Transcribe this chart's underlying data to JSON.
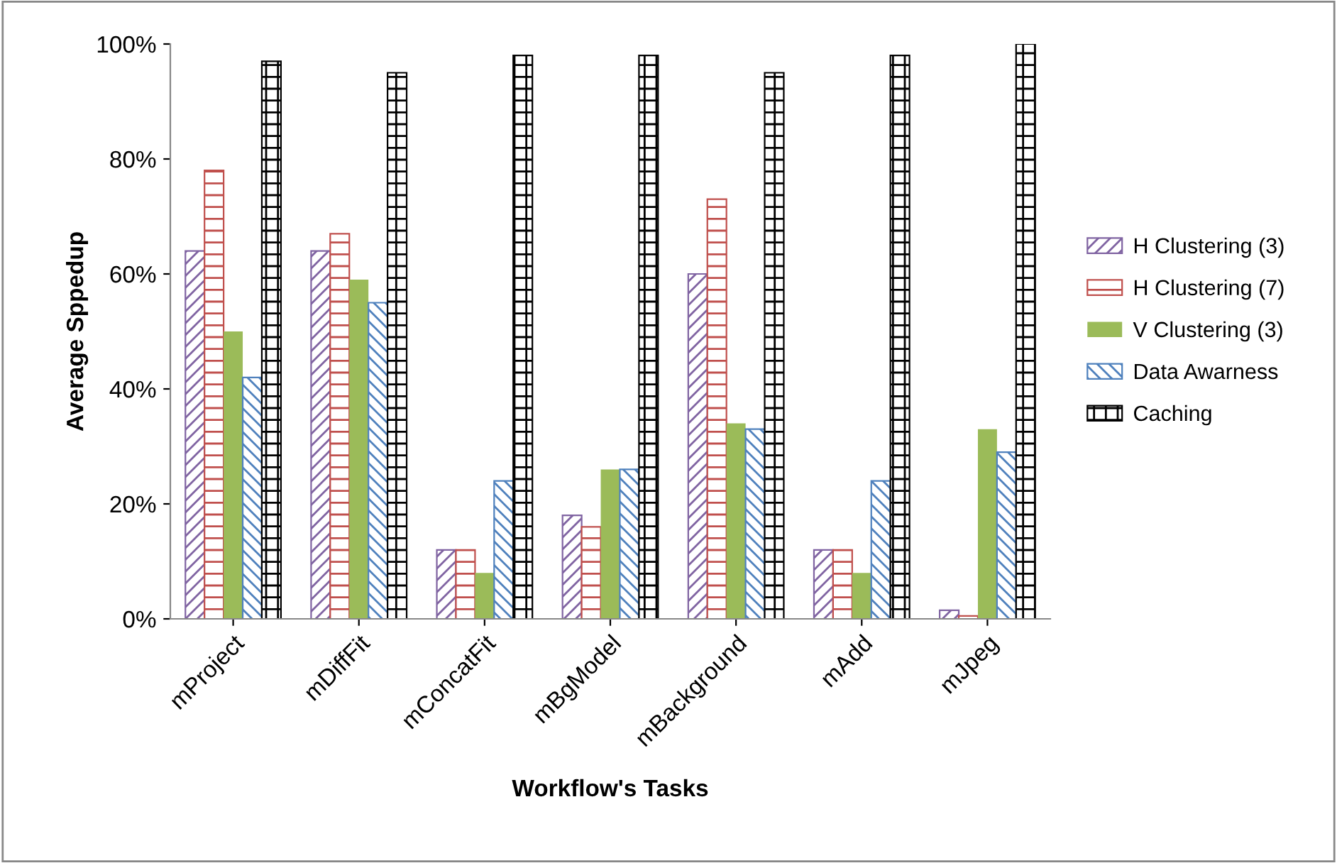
{
  "chart_data": {
    "type": "bar",
    "xlabel": "Workflow's Tasks",
    "ylabel": "Average Sppedup",
    "categories": [
      "mProject",
      "mDiffFit",
      "mConcatFit",
      "mBgModel",
      "mBackground",
      "mAdd",
      "mJpeg"
    ],
    "series": [
      {
        "name": "H Clustering (3)",
        "color": "#8064a2",
        "values": [
          64,
          64,
          12,
          18,
          60,
          12,
          1.5
        ]
      },
      {
        "name": "H Clustering (7)",
        "color": "#c0504d",
        "values": [
          78,
          67,
          12,
          16,
          73,
          12,
          0.5
        ]
      },
      {
        "name": "V Clustering (3)",
        "color": "#9bbb59",
        "values": [
          50,
          59,
          8,
          26,
          34,
          8,
          33
        ]
      },
      {
        "name": "Data Awarness",
        "color": "#4f81bd",
        "values": [
          42,
          55,
          24,
          26,
          33,
          24,
          29
        ]
      },
      {
        "name": "Caching",
        "color": "#000000",
        "values": [
          97,
          95,
          98,
          98,
          95,
          98,
          100
        ]
      }
    ],
    "ylim": [
      0,
      100
    ],
    "yticks": [
      {
        "value": 0,
        "label": "0%"
      },
      {
        "value": 20,
        "label": "20%"
      },
      {
        "value": 40,
        "label": "40%"
      },
      {
        "value": 60,
        "label": "60%"
      },
      {
        "value": 80,
        "label": "80%"
      },
      {
        "value": 100,
        "label": "100%"
      }
    ],
    "grid": false,
    "legend": "right"
  }
}
